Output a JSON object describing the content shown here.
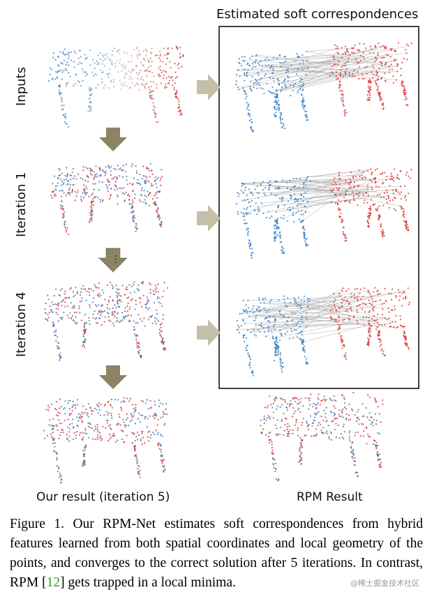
{
  "figure": {
    "header": "Estimated soft correspondences",
    "row_labels": [
      "Inputs",
      "Iteration 1",
      "Iteration 4"
    ],
    "bottom_left_label": "Our result (iteration 5)",
    "bottom_right_label": "RPM Result",
    "colors": {
      "source": "#3a7fc1",
      "target": "#d9383a",
      "arrow_fill": "#8c8462",
      "arrow_light": "#c4bfa8",
      "line": "#b0b0b0"
    }
  },
  "caption": {
    "prefix": "Figure 1. Our RPM-Net estimates soft correspondences from hybrid features learned from both spatial coordinates and local geometry of the points, and converges to the correct solution after 5 iterations. In contrast, RPM [",
    "ref": "12",
    "suffix": "] gets trapped in a local minima."
  },
  "watermark": "@稀土掘金技术社区"
}
